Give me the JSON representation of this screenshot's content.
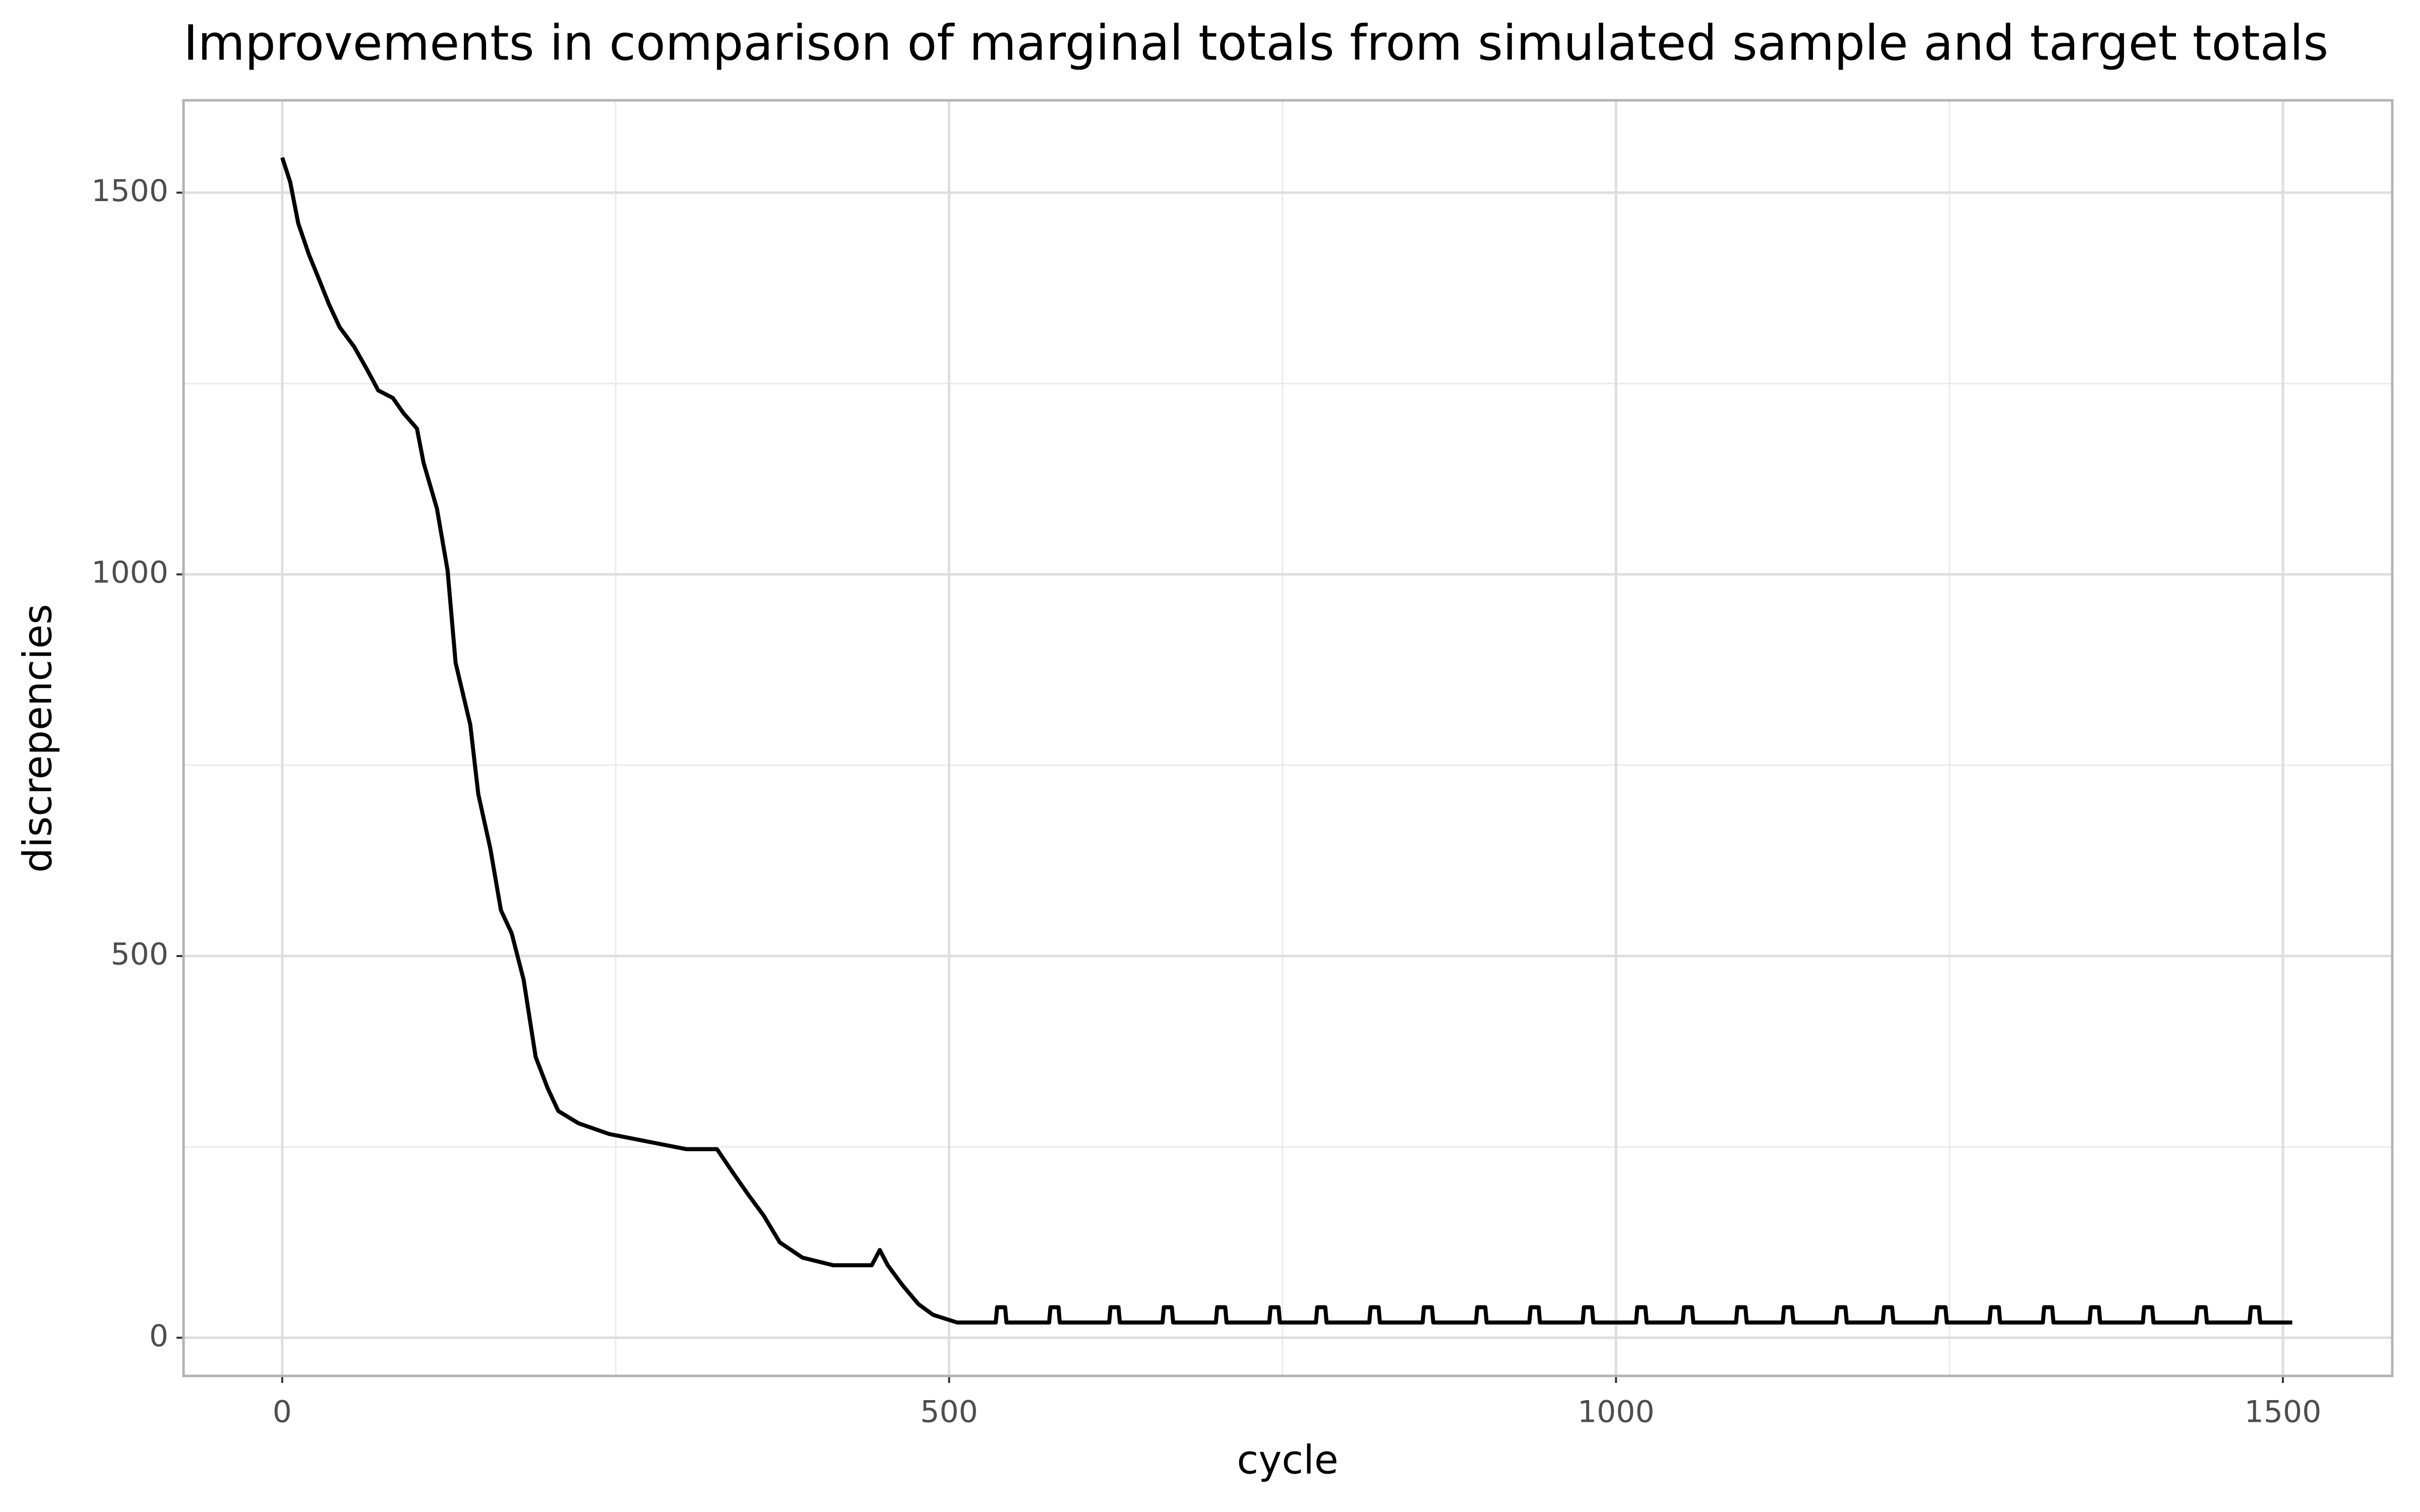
{
  "chart_data": {
    "type": "line",
    "title": "Improvements in comparison of marginal totals from simulated sample and target totals",
    "x_label": "cycle",
    "y_label": "discrepencies",
    "x": [
      0,
      6,
      12,
      20,
      27,
      35,
      43,
      54,
      64,
      72,
      83,
      91,
      101,
      106,
      116,
      124,
      130,
      141,
      147,
      156,
      164,
      172,
      181,
      190,
      199,
      207,
      222,
      245,
      274,
      303,
      326,
      338,
      350,
      361,
      373,
      390,
      413,
      442,
      448,
      454,
      465,
      477,
      488,
      506,
      529,
      535,
      536,
      542,
      543,
      575,
      576,
      582,
      583,
      620,
      621,
      627,
      628,
      660,
      661,
      667,
      668,
      700,
      701,
      707,
      708,
      740,
      741,
      747,
      748,
      775,
      776,
      782,
      783,
      815,
      816,
      822,
      823,
      855,
      856,
      862,
      863,
      895,
      896,
      902,
      903,
      935,
      936,
      942,
      943,
      975,
      976,
      982,
      983,
      1015,
      1016,
      1022,
      1023,
      1050,
      1051,
      1057,
      1058,
      1090,
      1091,
      1097,
      1098,
      1125,
      1126,
      1132,
      1133,
      1165,
      1166,
      1172,
      1173,
      1200,
      1201,
      1207,
      1208,
      1240,
      1241,
      1247,
      1248,
      1280,
      1281,
      1287,
      1288,
      1320,
      1321,
      1327,
      1328,
      1355,
      1356,
      1362,
      1363,
      1395,
      1396,
      1402,
      1403,
      1435,
      1436,
      1442,
      1443,
      1475,
      1476,
      1482,
      1483,
      1507
    ],
    "values": [
      1546,
      1514,
      1460,
      1419,
      1389,
      1354,
      1324,
      1298,
      1267,
      1241,
      1231,
      1211,
      1191,
      1146,
      1086,
      1005,
      884,
      803,
      712,
      641,
      560,
      530,
      469,
      368,
      327,
      297,
      281,
      267,
      257,
      247,
      247,
      216,
      186,
      160,
      125,
      105,
      95,
      95,
      115,
      95,
      69,
      44,
      30,
      20,
      20,
      20,
      40,
      40,
      20,
      20,
      40,
      40,
      20,
      20,
      40,
      40,
      20,
      20,
      40,
      40,
      20,
      20,
      40,
      40,
      20,
      20,
      40,
      40,
      20,
      20,
      40,
      40,
      20,
      20,
      40,
      40,
      20,
      20,
      40,
      40,
      20,
      20,
      40,
      40,
      20,
      20,
      40,
      40,
      20,
      20,
      40,
      40,
      20,
      20,
      40,
      40,
      20,
      20,
      40,
      40,
      20,
      20,
      40,
      40,
      20,
      20,
      40,
      40,
      20,
      20,
      40,
      40,
      20,
      20,
      40,
      40,
      20,
      20,
      40,
      40,
      20,
      20,
      40,
      40,
      20,
      20,
      40,
      40,
      20,
      20,
      40,
      40,
      20,
      20,
      40,
      40,
      20,
      20,
      40,
      40,
      20,
      20,
      40,
      40,
      20,
      20
    ],
    "color": "#000000",
    "xlim": [
      -74,
      1582
    ],
    "ylim": [
      -50,
      1621
    ],
    "xticks": [
      0,
      500,
      1000,
      1500
    ],
    "yticks": [
      0,
      500,
      1000,
      1500
    ],
    "grid": true
  }
}
